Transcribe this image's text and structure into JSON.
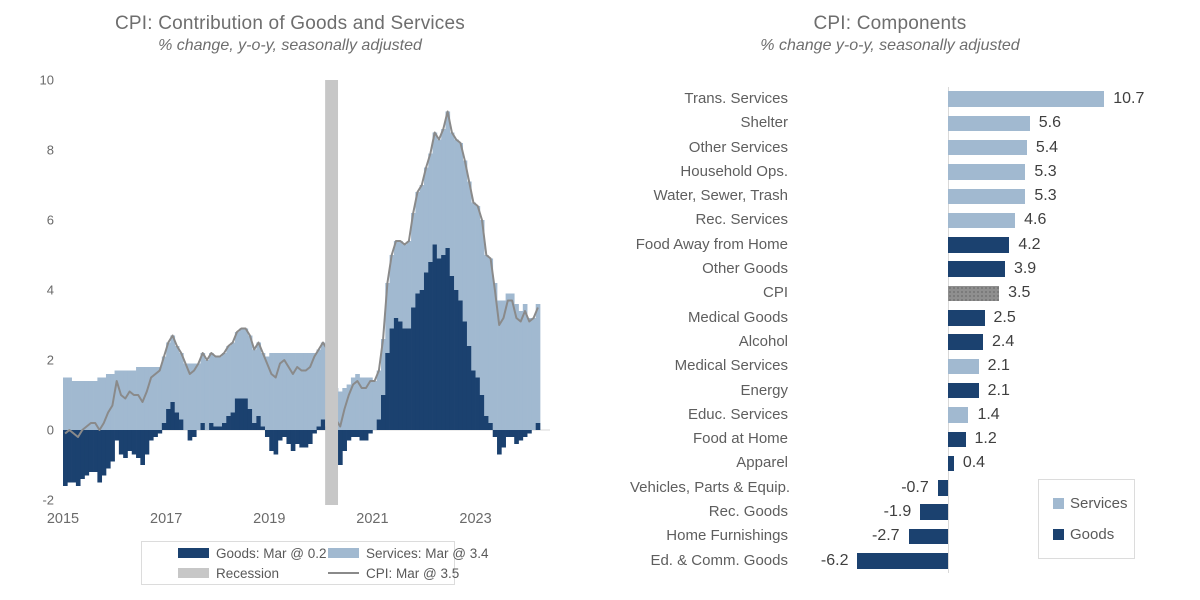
{
  "page": {
    "background": "#FFFFFF"
  },
  "colors": {
    "goods": "#1B416F",
    "services": "#A1B9D0",
    "cpi_line": "#8A8A8A",
    "cpi_bar": "#8F8F8F",
    "recession": "#C7C7C7",
    "axis_line": "#D9D9D9",
    "tick_text": "#6A6A6A",
    "title_text": "#6E6E6E"
  },
  "chart_data": [
    {
      "type": "bar",
      "subtype": "stacked-columns-with-line",
      "title": "CPI: Contribution of Goods and Services",
      "subtitle": "% change, y-o-y, seasonally adjusted",
      "x_start": "2015-01",
      "x_end": "2024-03",
      "x_ticks": [
        "2015",
        "2017",
        "2019",
        "2021",
        "2023"
      ],
      "ylim": [
        -2,
        10
      ],
      "y_ticks": [
        "10",
        "8",
        "6",
        "4",
        "2",
        "0",
        "-2"
      ],
      "grid": "zero-line-only",
      "recession_band": {
        "start_index": 61,
        "end_index": 63,
        "label": "Recession"
      },
      "legend_position": "bottom",
      "legend": [
        {
          "label": "Goods: Mar @ 0.2",
          "swatch": "rect",
          "color": "#1B416F"
        },
        {
          "label": "Services: Mar @ 3.4",
          "swatch": "rect",
          "color": "#A1B9D0"
        },
        {
          "label": "Recession",
          "swatch": "rect",
          "color": "#C7C7C7"
        },
        {
          "label": "CPI: Mar @ 3.5",
          "swatch": "line",
          "color": "#8A8A8A"
        }
      ],
      "series": [
        {
          "name": "Goods",
          "type": "column",
          "color": "#1B416F",
          "values": [
            -1.6,
            -1.5,
            -1.5,
            -1.6,
            -1.4,
            -1.3,
            -1.2,
            -1.2,
            -1.5,
            -1.3,
            -1.1,
            -0.9,
            -0.3,
            -0.7,
            -0.8,
            -0.6,
            -0.7,
            -0.8,
            -1.0,
            -0.7,
            -0.3,
            -0.2,
            -0.1,
            0.2,
            0.6,
            0.8,
            0.5,
            0.3,
            0.0,
            -0.3,
            -0.2,
            0.0,
            0.2,
            0.0,
            0.2,
            0.1,
            0.1,
            0.2,
            0.4,
            0.5,
            0.9,
            0.9,
            0.9,
            0.6,
            0.2,
            0.4,
            0.1,
            -0.2,
            -0.6,
            -0.7,
            -0.3,
            -0.2,
            -0.4,
            -0.6,
            -0.4,
            -0.5,
            -0.5,
            -0.4,
            -0.1,
            0.1,
            0.3,
            0.1,
            -0.4,
            -0.9,
            -1.0,
            -0.6,
            -0.3,
            -0.2,
            -0.2,
            -0.3,
            -0.3,
            -0.1,
            0.0,
            0.3,
            1.0,
            2.2,
            2.9,
            3.2,
            3.1,
            2.9,
            2.9,
            3.5,
            3.9,
            4.0,
            4.5,
            4.8,
            5.3,
            4.9,
            5.0,
            5.2,
            4.4,
            4.0,
            3.7,
            3.1,
            2.4,
            1.7,
            1.5,
            1.0,
            0.4,
            0.2,
            -0.2,
            -0.7,
            -0.5,
            -0.2,
            -0.2,
            -0.4,
            -0.3,
            -0.2,
            -0.1,
            0.0,
            0.2
          ]
        },
        {
          "name": "Services",
          "type": "column",
          "color": "#A1B9D0",
          "values": [
            1.5,
            1.5,
            1.4,
            1.4,
            1.4,
            1.4,
            1.4,
            1.4,
            1.5,
            1.5,
            1.6,
            1.6,
            1.7,
            1.7,
            1.7,
            1.7,
            1.7,
            1.8,
            1.8,
            1.8,
            1.8,
            1.8,
            1.8,
            1.9,
            1.9,
            1.9,
            1.9,
            1.9,
            1.9,
            1.9,
            1.9,
            1.9,
            2.0,
            2.0,
            2.0,
            2.0,
            2.0,
            2.0,
            2.0,
            2.0,
            1.9,
            2.0,
            2.0,
            2.1,
            2.1,
            2.1,
            2.1,
            2.1,
            2.2,
            2.2,
            2.2,
            2.2,
            2.2,
            2.2,
            2.2,
            2.2,
            2.2,
            2.2,
            2.2,
            2.2,
            2.2,
            2.2,
            1.9,
            1.2,
            1.1,
            1.2,
            1.3,
            1.5,
            1.6,
            1.5,
            1.5,
            1.5,
            1.4,
            1.4,
            1.6,
            2.0,
            2.1,
            2.2,
            2.3,
            2.4,
            2.5,
            2.7,
            2.9,
            3.0,
            3.0,
            3.1,
            3.2,
            3.4,
            3.6,
            3.9,
            4.1,
            4.3,
            4.5,
            4.6,
            4.7,
            4.8,
            4.9,
            5.0,
            4.6,
            4.7,
            4.2,
            3.7,
            3.7,
            3.9,
            3.9,
            3.6,
            3.4,
            3.6,
            3.2,
            3.2,
            3.4
          ]
        },
        {
          "name": "CPI",
          "type": "line",
          "color": "#8A8A8A",
          "values": [
            -0.1,
            0.0,
            -0.1,
            -0.2,
            0.0,
            0.1,
            0.2,
            0.2,
            0.0,
            0.2,
            0.5,
            0.7,
            1.4,
            1.0,
            0.9,
            1.1,
            1.0,
            1.0,
            0.8,
            1.1,
            1.5,
            1.6,
            1.7,
            2.1,
            2.5,
            2.7,
            2.4,
            2.2,
            1.9,
            1.6,
            1.7,
            1.9,
            2.2,
            2.0,
            2.2,
            2.1,
            2.1,
            2.2,
            2.4,
            2.5,
            2.8,
            2.9,
            2.9,
            2.7,
            2.3,
            2.5,
            2.2,
            1.9,
            1.6,
            1.5,
            1.9,
            2.0,
            1.8,
            1.6,
            1.8,
            1.7,
            1.7,
            1.8,
            2.1,
            2.3,
            2.5,
            2.3,
            1.5,
            0.3,
            0.1,
            0.6,
            1.0,
            1.3,
            1.4,
            1.2,
            1.2,
            1.4,
            1.4,
            1.7,
            2.6,
            4.2,
            5.0,
            5.4,
            5.4,
            5.3,
            5.4,
            6.2,
            6.8,
            7.0,
            7.5,
            7.9,
            8.5,
            8.3,
            8.6,
            9.1,
            8.5,
            8.3,
            8.2,
            7.7,
            7.1,
            6.5,
            6.4,
            6.0,
            5.0,
            4.9,
            4.0,
            3.0,
            3.2,
            3.7,
            3.7,
            3.2,
            3.1,
            3.4,
            3.1,
            3.2,
            3.5
          ]
        }
      ]
    },
    {
      "type": "bar",
      "orientation": "horizontal",
      "title": "CPI: Components",
      "subtitle": "% change y-o-y, seasonally adjusted",
      "value_labels": "on",
      "legend_position": "bottom-right-box",
      "legend": [
        {
          "label": "Services",
          "color": "#A1B9D0"
        },
        {
          "label": "Goods",
          "color": "#1B416F"
        }
      ],
      "bars": [
        {
          "label": "Trans. Services",
          "value": 10.7,
          "group": "Services"
        },
        {
          "label": "Shelter",
          "value": 5.6,
          "group": "Services"
        },
        {
          "label": "Other Services",
          "value": 5.4,
          "group": "Services"
        },
        {
          "label": "Household Ops.",
          "value": 5.3,
          "group": "Services"
        },
        {
          "label": "Water, Sewer, Trash",
          "value": 5.3,
          "group": "Services"
        },
        {
          "label": "Rec. Services",
          "value": 4.6,
          "group": "Services"
        },
        {
          "label": "Food Away from Home",
          "value": 4.2,
          "group": "Goods"
        },
        {
          "label": "Other Goods",
          "value": 3.9,
          "group": "Goods"
        },
        {
          "label": "CPI",
          "value": 3.5,
          "group": "CPI"
        },
        {
          "label": "Medical Goods",
          "value": 2.5,
          "group": "Goods"
        },
        {
          "label": "Alcohol",
          "value": 2.4,
          "group": "Goods"
        },
        {
          "label": "Medical Services",
          "value": 2.1,
          "group": "Services"
        },
        {
          "label": "Energy",
          "value": 2.1,
          "group": "Goods"
        },
        {
          "label": "Educ. Services",
          "value": 1.4,
          "group": "Services"
        },
        {
          "label": "Food at Home",
          "value": 1.2,
          "group": "Goods"
        },
        {
          "label": "Apparel",
          "value": 0.4,
          "group": "Goods"
        },
        {
          "label": "Vehicles, Parts & Equip.",
          "value": -0.7,
          "group": "Goods"
        },
        {
          "label": "Rec. Goods",
          "value": -1.9,
          "group": "Goods"
        },
        {
          "label": "Home Furnishings",
          "value": -2.7,
          "group": "Goods"
        },
        {
          "label": "Ed. & Comm. Goods",
          "value": -6.2,
          "group": "Goods"
        }
      ]
    }
  ]
}
